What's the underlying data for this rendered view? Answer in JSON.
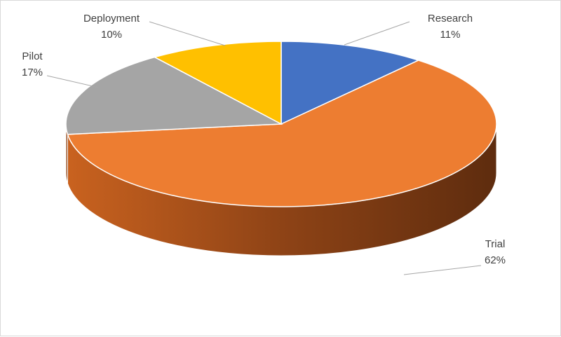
{
  "chart_data": {
    "type": "pie",
    "style": "3d",
    "slices": [
      {
        "label": "Research",
        "value": 11,
        "value_label": "11%",
        "color": "#4472C4"
      },
      {
        "label": "Trial",
        "value": 62,
        "value_label": "62%",
        "color": "#ED7D31"
      },
      {
        "label": "Pilot",
        "value": 17,
        "value_label": "17%",
        "color": "#A5A5A5"
      },
      {
        "label": "Deployment",
        "value": 10,
        "value_label": "10%",
        "color": "#FFC000"
      }
    ],
    "start_angle_deg": -90,
    "direction": "clockwise",
    "legend": "none",
    "data_labels": "outside-with-leader-lines"
  }
}
